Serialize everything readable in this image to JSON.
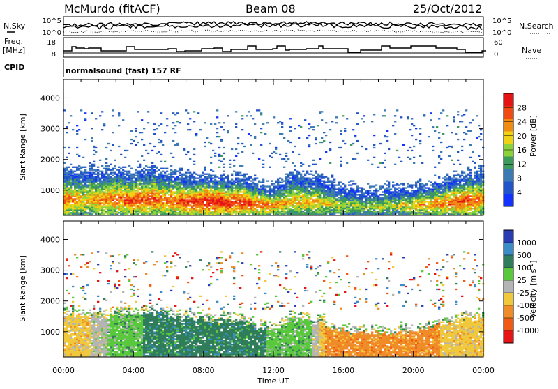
{
  "header": {
    "station": "McMurdo (fitACF)",
    "beam": "Beam 08",
    "date": "25/Oct/2012"
  },
  "top_panels": {
    "nsky_label": "N.Sky",
    "nsearch_label": "N.Search",
    "freq_label_1": "Freq.",
    "freq_label_2": "[MHz]",
    "nave_label": "Nave",
    "cpid_label": "CPID",
    "cpid_text": "normalsound (fast) 157 RF",
    "noise_ticks_left": [
      "10^5",
      "10^0"
    ],
    "noise_ticks_right": [
      "10^5",
      "10^0"
    ],
    "freq_ticks": [
      "18",
      "8"
    ],
    "nave_ticks": [
      "60",
      "0"
    ]
  },
  "colors": {
    "power": [
      "#1432ff",
      "#2255c8",
      "#3c7ab4",
      "#3c9a5a",
      "#8cd23c",
      "#f0d214",
      "#f08c14",
      "#f04b14",
      "#e61414"
    ],
    "velocity": [
      "#2a3cb4",
      "#3c8cc8",
      "#2f7d5a",
      "#5ac83c",
      "#b4b4b4",
      "#f0c83c",
      "#f08c28",
      "#f05a14",
      "#e61414"
    ]
  },
  "chart_data": [
    {
      "type": "heatmap",
      "title": "Power",
      "ylabel": "Slant Range [km]",
      "xlabel": "Time UT",
      "x_ticks": [
        "00:00",
        "04:00",
        "08:00",
        "12:00",
        "16:00",
        "20:00",
        "00:00"
      ],
      "xlim": [
        0,
        24
      ],
      "ylim": [
        180,
        4600
      ],
      "y_ticks": [
        1000,
        2000,
        3000,
        4000
      ],
      "colorbar": {
        "label": "Power [dB]",
        "ticks": [
          "4",
          "8",
          "12",
          "16",
          "20",
          "24",
          "28"
        ],
        "range": [
          0,
          32
        ]
      },
      "main_band": {
        "time": [
          0,
          1,
          2,
          3,
          4,
          5,
          6,
          7,
          8,
          9,
          10,
          11,
          12,
          13,
          14,
          15,
          16,
          17,
          18,
          19,
          20,
          21,
          22,
          23,
          24
        ],
        "top_km": [
          1500,
          1550,
          1500,
          1500,
          1550,
          1600,
          1500,
          1400,
          1400,
          1300,
          1300,
          1150,
          1000,
          1400,
          1350,
          1200,
          1000,
          900,
          950,
          950,
          1000,
          1100,
          1300,
          1400,
          1500
        ],
        "peak_db": [
          26,
          22,
          24,
          26,
          28,
          27,
          26,
          29,
          30,
          31,
          30,
          28,
          24,
          22,
          22,
          20,
          18,
          16,
          18,
          18,
          22,
          24,
          26,
          28,
          24
        ]
      }
    },
    {
      "type": "heatmap",
      "title": "Velocity",
      "ylabel": "Slant Range [km]",
      "xlabel": "Time UT",
      "x_ticks": [
        "00:00",
        "04:00",
        "08:00",
        "12:00",
        "16:00",
        "20:00",
        "00:00"
      ],
      "xlim": [
        0,
        24
      ],
      "ylim": [
        180,
        4600
      ],
      "y_ticks": [
        1000,
        2000,
        3000,
        4000
      ],
      "colorbar": {
        "label": "Velocity [m s^-1]",
        "ticks": [
          "1000",
          "500",
          "100",
          "25",
          "-25",
          "-100",
          "-500",
          "-1000"
        ]
      },
      "velocity_by_time": {
        "time": [
          0,
          1,
          2,
          3,
          4,
          5,
          6,
          7,
          8,
          9,
          10,
          11,
          12,
          13,
          14,
          15,
          16,
          17,
          18,
          19,
          20,
          21,
          22,
          23,
          24
        ],
        "class": [
          5,
          5,
          4,
          3,
          3,
          2,
          2,
          2,
          2,
          2,
          2,
          2,
          3,
          3,
          3,
          6,
          6,
          6,
          6,
          6,
          6,
          6,
          5,
          5,
          5
        ]
      }
    }
  ]
}
